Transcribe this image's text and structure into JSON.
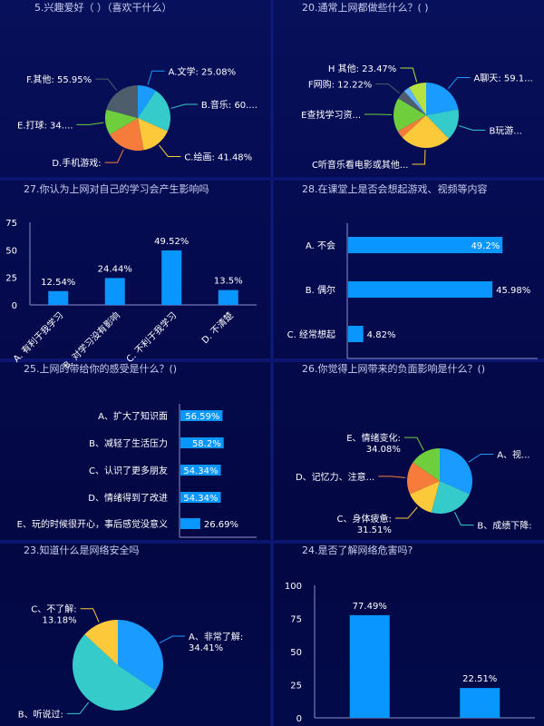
{
  "colors": {
    "background": "#050c52",
    "bar": "#0a96ff",
    "axis": "#8a93c8",
    "pie": [
      "#1a9bff",
      "#36cbcb",
      "#fbc93a",
      "#f67c3c",
      "#6fce3c",
      "#4e5d6c",
      "#5fb4ff",
      "#b5e23f"
    ]
  },
  "chart_data": [
    {
      "type": "pie",
      "title": "5.兴趣爱好（ ）（喜欢干什么）",
      "slices": [
        {
          "label": "A.文学: 25.08%",
          "value": 25.08
        },
        {
          "label": "B.音乐: 60....",
          "value": 60
        },
        {
          "label": "C.绘画: 41.48%",
          "value": 41.48
        },
        {
          "label": "D.手机游戏:",
          "value": 52
        },
        {
          "label": "E.打球: 34....",
          "value": 34
        },
        {
          "label": "F.其他: 55.95%",
          "value": 55.95
        }
      ]
    },
    {
      "type": "pie",
      "title": "20.通常上网都做些什么？( )",
      "slices": [
        {
          "label": "A聊天: 59.1...",
          "value": 59.1
        },
        {
          "label": "B玩游...",
          "value": 42
        },
        {
          "label": "C听音乐看电影或其他...",
          "value": 68
        },
        {
          "label": "",
          "value": 10
        },
        {
          "label": "E查找学习资...",
          "value": 45
        },
        {
          "label": "F网购: 12.22%",
          "value": 12.22
        },
        {
          "label": "",
          "value": 8
        },
        {
          "label": "H 其他: 23.47%",
          "value": 23.47
        }
      ]
    },
    {
      "type": "bar",
      "title": "27.你认为上网对自己的学习会产生影响吗",
      "categories": [
        "A. 有利于我学习",
        "B. 对学习没有影响",
        "C. 不利于我学习",
        "D. 不清楚"
      ],
      "values": [
        12.54,
        24.44,
        49.52,
        13.5
      ],
      "value_labels": [
        "12.54%",
        "24.44%",
        "49.52%",
        "13.5%"
      ],
      "yticks": [
        "0",
        "25",
        "50",
        "75"
      ],
      "ylim": [
        0,
        75
      ]
    },
    {
      "type": "bar",
      "orientation": "horizontal",
      "title": "28.在课堂上是否会想起游戏、视频等内容",
      "categories": [
        "A. 不会",
        "B. 偶尔",
        "C. 经常想起"
      ],
      "values": [
        49.2,
        45.98,
        4.82
      ],
      "value_labels": [
        "49.2%",
        "45.98%",
        "4.82%"
      ]
    },
    {
      "type": "bar",
      "orientation": "horizontal",
      "title": "25.上网的带给你的感受是什么？()",
      "categories": [
        "A、扩大了知识面",
        "B、减轻了生活压力",
        "C、认识了更多朋友",
        "D、情绪得到了改进",
        "E、玩的时候很开心，事后感觉没意义"
      ],
      "values": [
        56.59,
        58.2,
        54.34,
        54.34,
        26.69
      ],
      "value_labels": [
        "56.59%",
        "58.2%",
        "54.34%",
        "54.34%",
        "26.69%"
      ]
    },
    {
      "type": "pie",
      "title": "26.你觉得上网带来的负面影响是什么？()",
      "slices": [
        {
          "label": "A、视...",
          "value": 70
        },
        {
          "label": "B、成绩下降:",
          "value": 50
        },
        {
          "label": "C、身体疲惫:\n31.51%",
          "value": 31.51
        },
        {
          "label": "D、记忆力、注意...",
          "value": 36
        },
        {
          "label": "E、情绪变化:\n34.08%",
          "value": 34.08
        }
      ]
    },
    {
      "type": "pie",
      "title": "23.知道什么是网络安全吗",
      "slices": [
        {
          "label": "A、非常了解:\n34.41%",
          "value": 34.41
        },
        {
          "label": "B、听说过:",
          "value": 52.41
        },
        {
          "label": "C、不了解:\n13.18%",
          "value": 13.18
        }
      ]
    },
    {
      "type": "bar",
      "title": "24.是否了解网络危害吗?",
      "categories": [
        "",
        ""
      ],
      "values": [
        77.49,
        22.51
      ],
      "value_labels": [
        "77.49%",
        "22.51%"
      ],
      "yticks": [
        "0",
        "25",
        "50",
        "75",
        "100"
      ],
      "ylim": [
        0,
        100
      ]
    }
  ]
}
